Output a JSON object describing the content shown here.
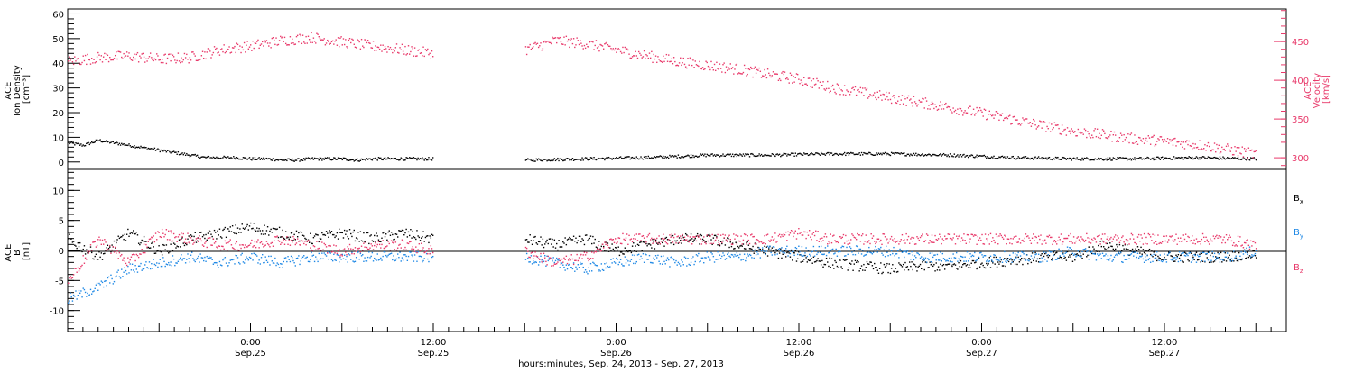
{
  "chart_data": [
    {
      "type": "scatter",
      "panel": "ion-density-velocity",
      "ylabel_left_lines": [
        "ACE",
        "Ion Density",
        "[cm⁻³]"
      ],
      "ylabel_right_lines": [
        "ACE",
        "Velocity",
        "[km/s]"
      ],
      "ylim_left": [
        -3,
        62
      ],
      "ylim_right": [
        285,
        492
      ],
      "yticks_left": [
        "0",
        "10",
        "20",
        "30",
        "40",
        "50",
        "60"
      ],
      "yticks_right": [
        "300",
        "350",
        "400",
        "450"
      ],
      "x_range_hours": [
        0,
        80
      ],
      "series": [
        {
          "color": "#000000",
          "axis": "left",
          "x": [
            0,
            1,
            2,
            3,
            4,
            5,
            6,
            7,
            8,
            9,
            10,
            11,
            12,
            13,
            14,
            15,
            16,
            17,
            18,
            19,
            20,
            21,
            22,
            23,
            24,
            30,
            34,
            38,
            42,
            46,
            50,
            54,
            58,
            62,
            66,
            70,
            74,
            78
          ],
          "y": [
            8,
            7,
            9,
            8,
            7,
            6,
            5,
            4,
            3,
            2,
            2,
            2,
            1.5,
            1.5,
            1,
            1,
            1.5,
            1.5,
            1.5,
            1,
            1.5,
            1.5,
            1.5,
            1.5,
            1.5,
            1,
            1.5,
            2,
            3,
            3,
            3.5,
            3.5,
            3,
            2,
            1.5,
            1.5,
            2,
            1.5
          ]
        },
        {
          "color": "#e8396a",
          "axis": "right",
          "x": [
            0,
            2,
            4,
            6,
            8,
            10,
            12,
            14,
            16,
            18,
            20,
            22,
            24,
            30,
            32,
            34,
            36,
            38,
            40,
            42,
            44,
            46,
            48,
            50,
            52,
            54,
            56,
            58,
            60,
            62,
            64,
            66,
            68,
            70,
            72,
            74,
            76,
            78
          ],
          "y": [
            425,
            430,
            432,
            428,
            430,
            440,
            445,
            452,
            456,
            450,
            445,
            440,
            435,
            440,
            452,
            448,
            440,
            432,
            425,
            420,
            415,
            408,
            402,
            392,
            385,
            378,
            372,
            365,
            358,
            350,
            342,
            335,
            330,
            325,
            322,
            318,
            312,
            305
          ]
        }
      ]
    },
    {
      "type": "scatter",
      "panel": "imf-b",
      "ylabel_left_lines": [
        "ACE",
        "B",
        "[nT]"
      ],
      "ylim": [
        -13.5,
        13.5
      ],
      "yticks": [
        "-10",
        "-5",
        "0",
        "5",
        "10"
      ],
      "x_range_hours": [
        0,
        80
      ],
      "xtick_labels": [
        {
          "time": "0:00",
          "date": "Sep.25"
        },
        {
          "time": "12:00",
          "date": "Sep.25"
        },
        {
          "time": "0:00",
          "date": "Sep.26"
        },
        {
          "time": "12:00",
          "date": "Sep.26"
        },
        {
          "time": "0:00",
          "date": "Sep.27"
        },
        {
          "time": "12:00",
          "date": "Sep.27"
        }
      ],
      "xlabel": "hours:minutes, Sep. 24, 2013 - Sep. 27, 2013",
      "series": [
        {
          "name": "Bx",
          "color": "#000000",
          "x": [
            0,
            2,
            4,
            6,
            8,
            10,
            12,
            14,
            16,
            18,
            20,
            22,
            24,
            30,
            32,
            34,
            36,
            38,
            40,
            42,
            44,
            46,
            48,
            50,
            52,
            54,
            56,
            58,
            60,
            62,
            64,
            66,
            68,
            70,
            72,
            74,
            76,
            78
          ],
          "y": [
            2,
            -1,
            3,
            0,
            2,
            3,
            4,
            3,
            2,
            3,
            2,
            3,
            2,
            2,
            1,
            2,
            0,
            1,
            2,
            2,
            1,
            0,
            -1,
            -2,
            -2.5,
            -3,
            -2.5,
            -2.5,
            -2,
            -1.5,
            -1,
            -1,
            1,
            0,
            -1,
            -1,
            -1,
            -0.5
          ]
        },
        {
          "name": "By",
          "color": "#1e88e5",
          "x": [
            0,
            2,
            4,
            6,
            8,
            10,
            12,
            14,
            16,
            18,
            20,
            22,
            24,
            30,
            32,
            34,
            36,
            38,
            40,
            42,
            44,
            46,
            48,
            50,
            52,
            54,
            56,
            58,
            60,
            62,
            64,
            66,
            68,
            70,
            72,
            74,
            76,
            78
          ],
          "y": [
            -8,
            -6,
            -3,
            -2,
            -1,
            -2,
            -1,
            -2,
            -1,
            -1,
            -1,
            -1,
            -1,
            -1,
            -2,
            -3,
            -2,
            -1,
            -2,
            -1,
            -1,
            0,
            0,
            0,
            0,
            0,
            -1,
            -1,
            -1,
            -1,
            -1,
            0,
            -1,
            -1,
            -1,
            -1,
            -1,
            0
          ]
        },
        {
          "name": "Bz",
          "color": "#e8396a",
          "x": [
            0,
            2,
            4,
            6,
            8,
            10,
            12,
            14,
            16,
            18,
            20,
            22,
            24,
            30,
            32,
            34,
            36,
            38,
            40,
            42,
            44,
            46,
            48,
            50,
            52,
            54,
            56,
            58,
            60,
            62,
            64,
            66,
            68,
            70,
            72,
            74,
            76,
            78
          ],
          "y": [
            -5,
            2,
            -2,
            3,
            2,
            1,
            1,
            2,
            1,
            0,
            1,
            1,
            0,
            0,
            -2,
            -1,
            2,
            2,
            2,
            2,
            2,
            2,
            3,
            2,
            2,
            2,
            2,
            2,
            2,
            2,
            2,
            2,
            2,
            2,
            2,
            2,
            2,
            1
          ]
        }
      ],
      "legend": [
        {
          "label": "B",
          "sub": "x",
          "color": "#000000"
        },
        {
          "label": "B",
          "sub": "y",
          "color": "#1e88e5"
        },
        {
          "label": "B",
          "sub": "z",
          "color": "#e8396a"
        }
      ],
      "legend_position": "right"
    }
  ]
}
